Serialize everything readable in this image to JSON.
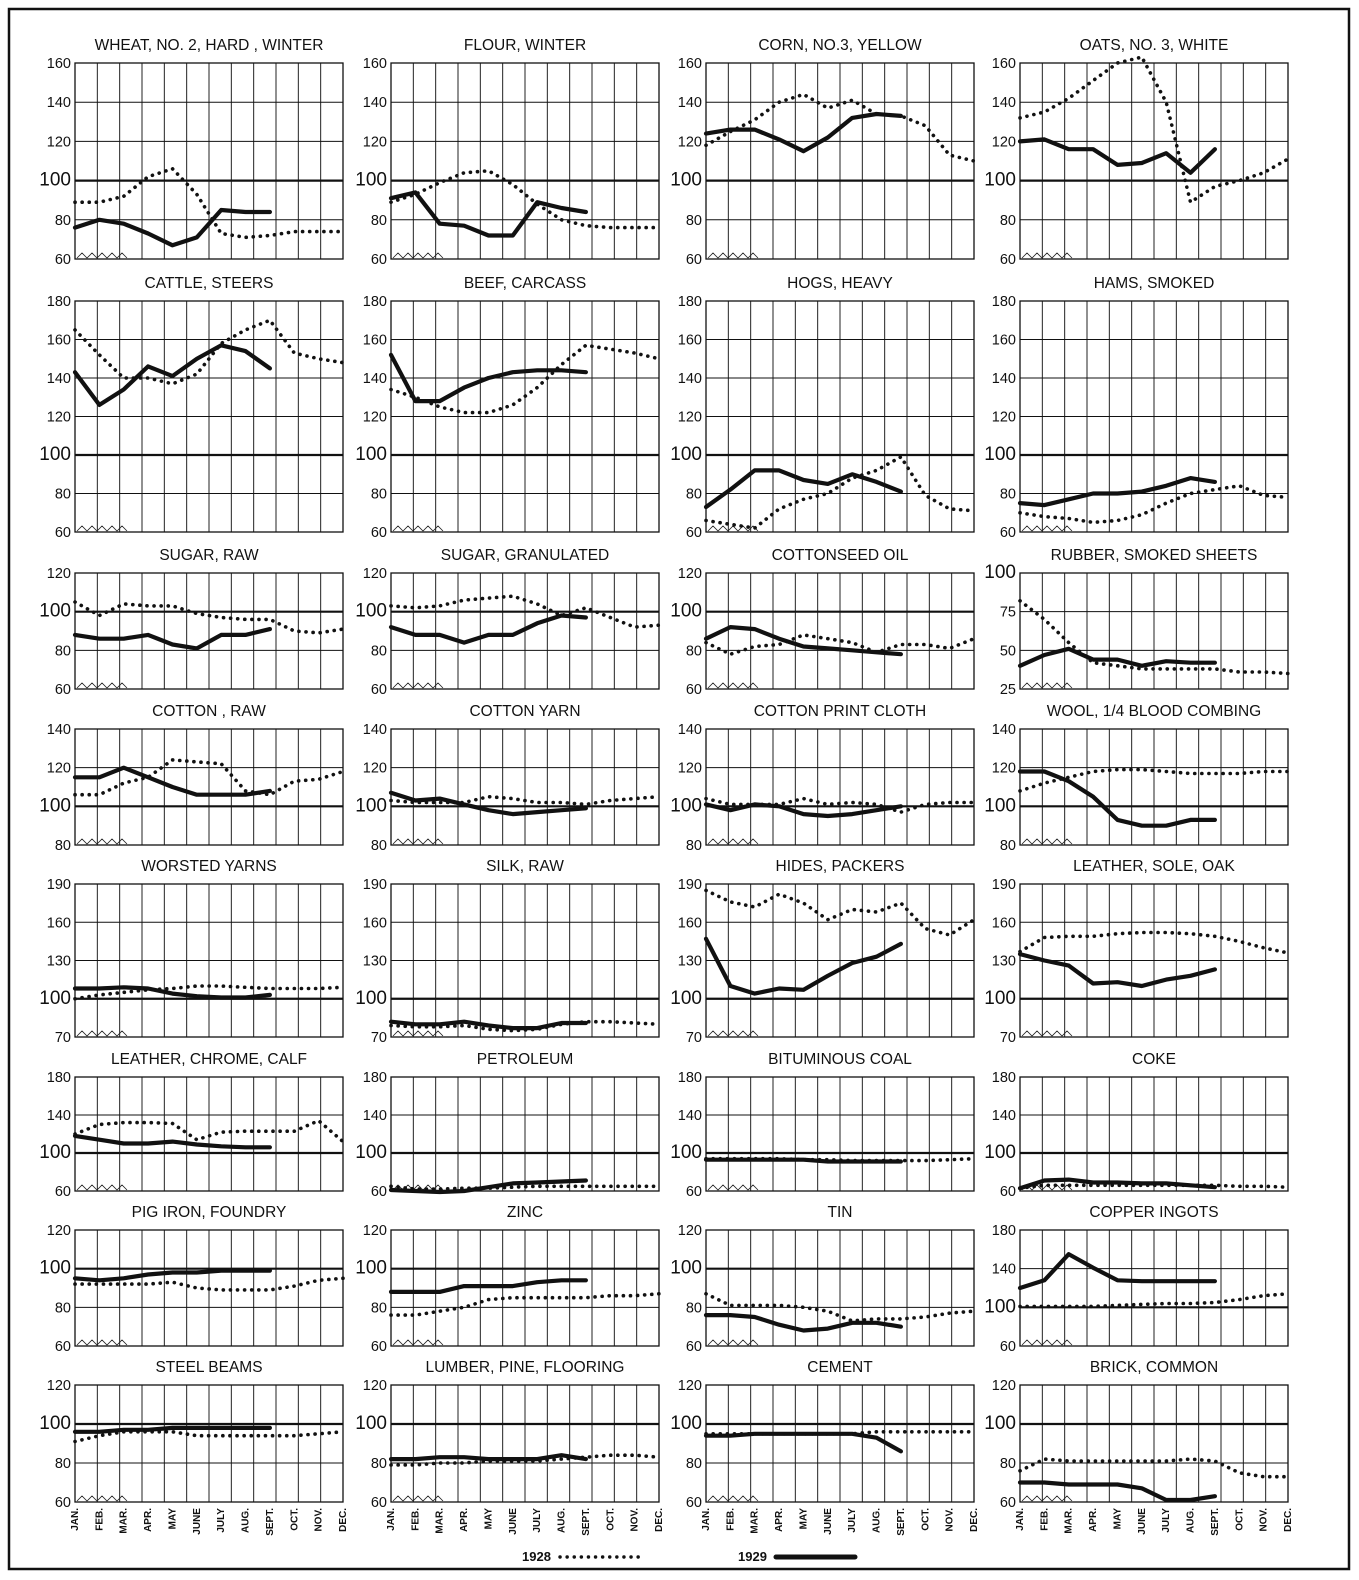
{
  "chart_data": {
    "type": "line",
    "months": [
      "JAN.",
      "FEB.",
      "MAR.",
      "APR.",
      "MAY",
      "JUNE",
      "JULY",
      "AUG.",
      "SEPT.",
      "OCT.",
      "NOV.",
      "DEC."
    ],
    "legend": [
      {
        "label": "1928",
        "style": "dotted"
      },
      {
        "label": "1929",
        "style": "solid"
      }
    ],
    "panels": [
      {
        "title": "WHEAT, NO. 2, HARD , WINTER",
        "yticks": [
          60,
          80,
          100,
          120,
          140,
          160
        ],
        "s1928": [
          89,
          89,
          92,
          102,
          106,
          93,
          73,
          71,
          72,
          74,
          74,
          74
        ],
        "s1929": [
          76,
          80,
          78,
          73,
          67,
          71,
          85,
          84,
          84
        ]
      },
      {
        "title": "FLOUR, WINTER",
        "yticks": [
          60,
          80,
          100,
          120,
          140,
          160
        ],
        "s1928": [
          89,
          93,
          99,
          104,
          105,
          98,
          88,
          80,
          77,
          76,
          76,
          76
        ],
        "s1929": [
          91,
          94,
          78,
          77,
          72,
          72,
          89,
          86,
          84
        ]
      },
      {
        "title": "CORN, NO.3, YELLOW",
        "yticks": [
          60,
          80,
          100,
          120,
          140,
          160
        ],
        "s1928": [
          118,
          125,
          131,
          140,
          144,
          137,
          141,
          134,
          133,
          128,
          113,
          110
        ],
        "s1929": [
          124,
          126,
          126,
          121,
          115,
          122,
          132,
          134,
          133
        ]
      },
      {
        "title": "OATS, NO. 3, WHITE",
        "yticks": [
          60,
          80,
          100,
          120,
          140,
          160
        ],
        "s1928": [
          132,
          135,
          142,
          151,
          160,
          163,
          140,
          89,
          97,
          100,
          104,
          111
        ],
        "s1929": [
          120,
          121,
          116,
          116,
          108,
          109,
          114,
          104,
          116
        ]
      },
      {
        "title": "CATTLE, STEERS",
        "yticks": [
          60,
          80,
          100,
          120,
          140,
          160,
          180
        ],
        "s1928": [
          165,
          152,
          140,
          140,
          137,
          142,
          158,
          165,
          170,
          153,
          150,
          148
        ],
        "s1929": [
          143,
          126,
          134,
          146,
          141,
          150,
          157,
          154,
          145
        ]
      },
      {
        "title": "BEEF, CARCASS",
        "yticks": [
          60,
          80,
          100,
          120,
          140,
          160,
          180
        ],
        "s1928": [
          134,
          130,
          125,
          122,
          122,
          126,
          135,
          147,
          157,
          155,
          153,
          150
        ],
        "s1929": [
          152,
          128,
          128,
          135,
          140,
          143,
          144,
          144,
          143
        ]
      },
      {
        "title": "HOGS, HEAVY",
        "yticks": [
          60,
          80,
          100,
          120,
          140,
          160,
          180
        ],
        "s1928": [
          66,
          64,
          62,
          72,
          77,
          80,
          88,
          92,
          99,
          79,
          72,
          71
        ],
        "s1929": [
          73,
          82,
          92,
          92,
          87,
          85,
          90,
          86,
          81
        ]
      },
      {
        "title": "HAMS, SMOKED",
        "yticks": [
          60,
          80,
          100,
          120,
          140,
          160,
          180
        ],
        "s1928": [
          70,
          68,
          67,
          65,
          66,
          69,
          75,
          80,
          82,
          84,
          79,
          78
        ],
        "s1929": [
          75,
          74,
          77,
          80,
          80,
          81,
          84,
          88,
          86
        ]
      },
      {
        "title": "SUGAR, RAW",
        "yticks": [
          60,
          80,
          100,
          120
        ],
        "s1928": [
          105,
          98,
          104,
          103,
          103,
          99,
          97,
          96,
          96,
          90,
          89,
          91
        ],
        "s1929": [
          88,
          86,
          86,
          88,
          83,
          81,
          88,
          88,
          91
        ]
      },
      {
        "title": "SUGAR, GRANULATED",
        "yticks": [
          60,
          80,
          100,
          120
        ],
        "s1928": [
          103,
          102,
          103,
          106,
          107,
          108,
          104,
          98,
          102,
          97,
          92,
          93
        ],
        "s1929": [
          92,
          88,
          88,
          84,
          88,
          88,
          94,
          98,
          97
        ]
      },
      {
        "title": "COTTONSEED OIL",
        "yticks": [
          60,
          80,
          100,
          120
        ],
        "s1928": [
          84,
          78,
          82,
          83,
          88,
          86,
          84,
          79,
          83,
          83,
          81,
          86
        ],
        "s1929": [
          86,
          92,
          91,
          86,
          82,
          81,
          80,
          79,
          78
        ]
      },
      {
        "title": "RUBBER, SMOKED SHEETS",
        "yticks": [
          25,
          50,
          75,
          100
        ],
        "s1928": [
          82,
          70,
          55,
          42,
          40,
          38,
          38,
          38,
          38,
          36,
          36,
          35
        ],
        "s1929": [
          40,
          47,
          51,
          44,
          44,
          40,
          43,
          42,
          42
        ]
      },
      {
        "title": "COTTON , RAW",
        "yticks": [
          80,
          100,
          120,
          140
        ],
        "s1928": [
          106,
          106,
          112,
          115,
          124,
          123,
          122,
          108,
          106,
          113,
          114,
          118
        ],
        "s1929": [
          115,
          115,
          120,
          115,
          110,
          106,
          106,
          106,
          108
        ]
      },
      {
        "title": "COTTON YARN",
        "yticks": [
          80,
          100,
          120,
          140
        ],
        "s1928": [
          103,
          102,
          102,
          102,
          105,
          104,
          102,
          102,
          101,
          103,
          104,
          105
        ],
        "s1929": [
          107,
          103,
          104,
          101,
          98,
          96,
          97,
          98,
          99
        ]
      },
      {
        "title": "COTTON PRINT CLOTH",
        "yticks": [
          80,
          100,
          120,
          140
        ],
        "s1928": [
          104,
          101,
          101,
          101,
          104,
          101,
          102,
          101,
          97,
          101,
          102,
          102
        ],
        "s1929": [
          101,
          98,
          101,
          100,
          96,
          95,
          96,
          98,
          100
        ]
      },
      {
        "title": "WOOL, 1/4 BLOOD COMBING",
        "yticks": [
          80,
          100,
          120,
          140
        ],
        "s1928": [
          108,
          112,
          115,
          118,
          119,
          119,
          118,
          117,
          117,
          117,
          118,
          118
        ],
        "s1929": [
          118,
          118,
          113,
          105,
          93,
          90,
          90,
          93,
          93
        ]
      },
      {
        "title": "WORSTED YARNS",
        "yticks": [
          70,
          100,
          130,
          160,
          190
        ],
        "s1928": [
          100,
          103,
          105,
          107,
          108,
          110,
          110,
          109,
          108,
          108,
          108,
          109
        ],
        "s1929": [
          108,
          108,
          109,
          108,
          104,
          102,
          101,
          101,
          103
        ]
      },
      {
        "title": "SILK, RAW",
        "yticks": [
          70,
          100,
          130,
          160,
          190
        ],
        "s1928": [
          79,
          78,
          78,
          79,
          76,
          75,
          76,
          80,
          82,
          82,
          81,
          80
        ],
        "s1929": [
          82,
          80,
          80,
          82,
          79,
          77,
          77,
          81,
          81
        ]
      },
      {
        "title": "HIDES, PACKERS",
        "yticks": [
          70,
          100,
          130,
          160,
          190
        ],
        "s1928": [
          185,
          176,
          172,
          182,
          175,
          162,
          170,
          168,
          175,
          155,
          150,
          162
        ],
        "s1929": [
          147,
          110,
          104,
          108,
          107,
          118,
          128,
          133,
          143
        ]
      },
      {
        "title": "LEATHER, SOLE, OAK",
        "yticks": [
          70,
          100,
          130,
          160,
          190
        ],
        "s1928": [
          137,
          148,
          149,
          149,
          151,
          152,
          152,
          151,
          149,
          145,
          140,
          136
        ],
        "s1929": [
          135,
          130,
          126,
          112,
          113,
          110,
          115,
          118,
          123
        ]
      },
      {
        "title": "LEATHER, CHROME, CALF",
        "yticks": [
          60,
          100,
          140,
          180
        ],
        "s1928": [
          120,
          130,
          132,
          132,
          131,
          114,
          122,
          123,
          123,
          123,
          134,
          112
        ],
        "s1929": [
          118,
          114,
          110,
          110,
          112,
          109,
          107,
          106,
          106
        ]
      },
      {
        "title": "PETROLEUM",
        "yticks": [
          60,
          100,
          140,
          180
        ],
        "s1928": [
          65,
          62,
          62,
          63,
          63,
          64,
          65,
          65,
          65,
          65,
          65,
          65
        ],
        "s1929": [
          61,
          60,
          59,
          60,
          64,
          68,
          69,
          70,
          71
        ]
      },
      {
        "title": "BITUMINOUS COAL",
        "yticks": [
          60,
          100,
          140,
          180
        ],
        "s1928": [
          94,
          94,
          94,
          94,
          93,
          93,
          92,
          92,
          92,
          92,
          93,
          94
        ],
        "s1929": [
          93,
          93,
          93,
          93,
          93,
          91,
          91,
          91,
          91
        ]
      },
      {
        "title": "COKE",
        "yticks": [
          60,
          100,
          140,
          180
        ],
        "s1928": [
          63,
          66,
          66,
          66,
          66,
          66,
          66,
          66,
          66,
          65,
          65,
          64
        ],
        "s1929": [
          63,
          71,
          72,
          69,
          69,
          68,
          68,
          66,
          64
        ]
      },
      {
        "title": "PIG IRON, FOUNDRY",
        "yticks": [
          60,
          80,
          100,
          120
        ],
        "s1928": [
          92,
          92,
          92,
          92,
          93,
          90,
          89,
          89,
          89,
          91,
          94,
          95
        ],
        "s1929": [
          95,
          94,
          95,
          97,
          98,
          98,
          99,
          99,
          99
        ]
      },
      {
        "title": "ZINC",
        "yticks": [
          60,
          80,
          100,
          120
        ],
        "s1928": [
          76,
          76,
          78,
          80,
          84,
          85,
          85,
          85,
          85,
          86,
          86,
          87
        ],
        "s1929": [
          88,
          88,
          88,
          91,
          91,
          91,
          93,
          94,
          94
        ]
      },
      {
        "title": "TIN",
        "yticks": [
          60,
          80,
          100,
          120
        ],
        "s1928": [
          87,
          81,
          81,
          81,
          80,
          78,
          73,
          74,
          74,
          75,
          77,
          78
        ],
        "s1929": [
          76,
          76,
          75,
          71,
          68,
          69,
          72,
          72,
          70
        ]
      },
      {
        "title": "COPPER INGOTS",
        "yticks": [
          60,
          100,
          140,
          180
        ],
        "s1928": [
          101,
          101,
          101,
          101,
          102,
          103,
          104,
          104,
          105,
          108,
          112,
          114
        ],
        "s1929": [
          120,
          128,
          155,
          141,
          128,
          127,
          127,
          127,
          127
        ]
      },
      {
        "title": "STEEL BEAMS",
        "yticks": [
          60,
          80,
          100,
          120
        ],
        "s1928": [
          91,
          94,
          96,
          96,
          96,
          94,
          94,
          94,
          94,
          94,
          95,
          96
        ],
        "s1929": [
          96,
          96,
          97,
          97,
          98,
          98,
          98,
          98,
          98
        ]
      },
      {
        "title": "LUMBER, PINE, FLOORING",
        "yticks": [
          60,
          80,
          100,
          120
        ],
        "s1928": [
          79,
          79,
          80,
          80,
          81,
          81,
          81,
          82,
          83,
          84,
          84,
          83
        ],
        "s1929": [
          82,
          82,
          83,
          83,
          82,
          82,
          82,
          84,
          82
        ]
      },
      {
        "title": "CEMENT",
        "yticks": [
          60,
          80,
          100,
          120
        ],
        "s1928": [
          95,
          95,
          95,
          95,
          95,
          95,
          95,
          96,
          96,
          96,
          96,
          96
        ],
        "s1929": [
          94,
          94,
          95,
          95,
          95,
          95,
          95,
          93,
          86
        ]
      },
      {
        "title": "BRICK, COMMON",
        "yticks": [
          60,
          80,
          100,
          120
        ],
        "s1928": [
          76,
          82,
          81,
          81,
          81,
          81,
          81,
          82,
          81,
          75,
          73,
          73
        ],
        "s1929": [
          70,
          70,
          69,
          69,
          69,
          67,
          61,
          61,
          63
        ]
      }
    ]
  }
}
